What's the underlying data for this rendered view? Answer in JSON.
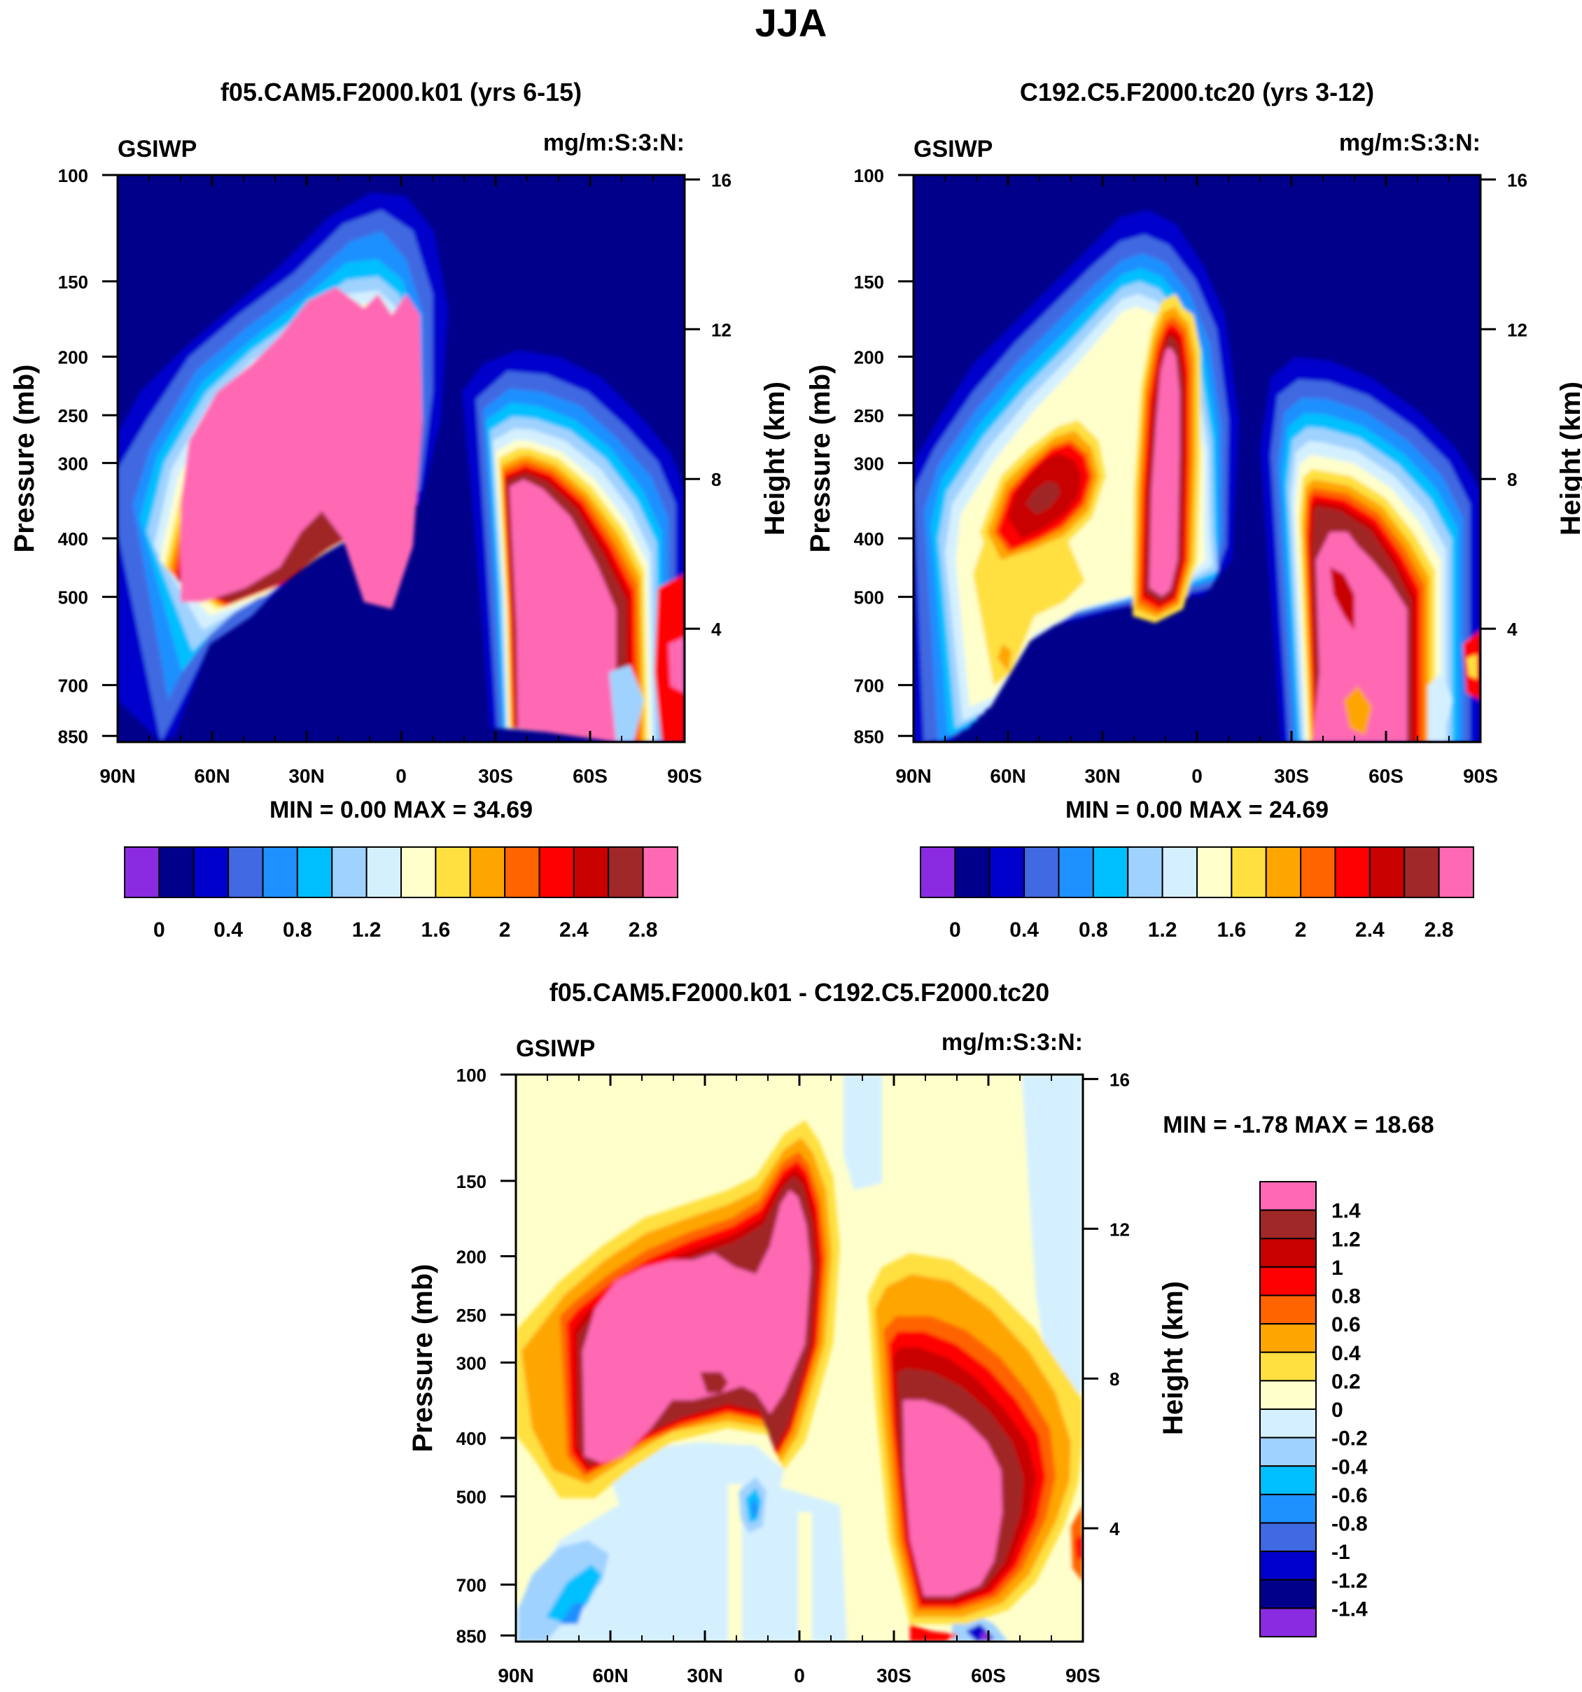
{
  "title": "JJA",
  "panels": [
    {
      "id": "top-left",
      "title": "f05.CAM5.F2000.k01 (yrs 6-15)",
      "variable": "GSIWP",
      "units": "mg/m:S:3:N:",
      "ylabel_left": "Pressure (mb)",
      "ylabel_right": "Height (km)",
      "stats": "MIN =   0.00  MAX =  34.69",
      "stats_min": 0.0,
      "stats_max": 34.69
    },
    {
      "id": "top-right",
      "title": "C192.C5.F2000.tc20 (yrs 3-12)",
      "variable": "GSIWP",
      "units": "mg/m:S:3:N:",
      "ylabel_left": "Pressure (mb)",
      "ylabel_right": "Height (km)",
      "stats": "MIN =   0.00  MAX =  24.69",
      "stats_min": 0.0,
      "stats_max": 24.69
    },
    {
      "id": "bottom",
      "title": "f05.CAM5.F2000.k01 - C192.C5.F2000.tc20",
      "variable": "GSIWP",
      "units": "mg/m:S:3:N:",
      "ylabel_left": "Pressure (mb)",
      "ylabel_right": "Height (km)",
      "stats": "MIN =  -1.78  MAX =  18.68",
      "stats_min": -1.78,
      "stats_max": 18.68
    }
  ],
  "axes": {
    "x_ticks": [
      "90N",
      "60N",
      "30N",
      "0",
      "30S",
      "60S",
      "90S"
    ],
    "x_range": [
      90,
      -90
    ],
    "pressure_ticks": [
      "100",
      "150",
      "200",
      "250",
      "300",
      "400",
      "500",
      "700",
      "850"
    ],
    "pressure_values": [
      100,
      150,
      200,
      250,
      300,
      400,
      500,
      700,
      850
    ],
    "height_ticks": [
      "16",
      "12",
      "8",
      "4"
    ],
    "height_values": [
      16,
      12,
      8,
      4
    ]
  },
  "colorbars": {
    "absolute": {
      "labels": [
        "0",
        "0.4",
        "0.8",
        "1.2",
        "1.6",
        "2",
        "2.4",
        "2.8"
      ],
      "colors": [
        "#8a2be2",
        "#00008b",
        "#0000cd",
        "#4169e1",
        "#1e90ff",
        "#00bfff",
        "#a0d2ff",
        "#d4f0ff",
        "#ffffcc",
        "#ffe040",
        "#ffa500",
        "#ff6400",
        "#ff0000",
        "#c80000",
        "#a02828",
        "#ff69b4"
      ]
    },
    "difference": {
      "labels": [
        "1.4",
        "1.2",
        "1",
        "0.8",
        "0.6",
        "0.4",
        "0.2",
        "0",
        "-0.2",
        "-0.4",
        "-0.6",
        "-0.8",
        "-1",
        "-1.2",
        "-1.4"
      ],
      "colors": [
        "#ff69b4",
        "#a02828",
        "#c80000",
        "#ff0000",
        "#ff6400",
        "#ffa500",
        "#ffe040",
        "#ffffcc",
        "#d4f0ff",
        "#a0d2ff",
        "#00bfff",
        "#1e90ff",
        "#4169e1",
        "#0000cd",
        "#00008b",
        "#8a2be2"
      ]
    }
  },
  "chart_data": [
    {
      "type": "contour",
      "title": "f05.CAM5.F2000.k01 (yrs 6-15)",
      "xlabel": "",
      "ylabel": "Pressure (mb)",
      "ylabel_right": "Height (km)",
      "xlim": [
        90,
        -90
      ],
      "ylim": [
        100,
        850
      ],
      "min": 0.0,
      "max": 34.69,
      "levels": [
        0,
        0.2,
        0.4,
        0.6,
        0.8,
        1.0,
        1.2,
        1.4,
        1.6,
        1.8,
        2.0,
        2.2,
        2.4,
        2.6,
        2.8
      ]
    },
    {
      "type": "contour",
      "title": "C192.C5.F2000.tc20 (yrs 3-12)",
      "xlabel": "",
      "ylabel": "Pressure (mb)",
      "ylabel_right": "Height (km)",
      "xlim": [
        90,
        -90
      ],
      "ylim": [
        100,
        850
      ],
      "min": 0.0,
      "max": 24.69,
      "levels": [
        0,
        0.2,
        0.4,
        0.6,
        0.8,
        1.0,
        1.2,
        1.4,
        1.6,
        1.8,
        2.0,
        2.2,
        2.4,
        2.6,
        2.8
      ]
    },
    {
      "type": "contour",
      "title": "f05.CAM5.F2000.k01 - C192.C5.F2000.tc20",
      "xlabel": "",
      "ylabel": "Pressure (mb)",
      "ylabel_right": "Height (km)",
      "xlim": [
        90,
        -90
      ],
      "ylim": [
        100,
        850
      ],
      "min": -1.78,
      "max": 18.68,
      "levels": [
        -1.4,
        -1.2,
        -1.0,
        -0.8,
        -0.6,
        -0.4,
        -0.2,
        0,
        0.2,
        0.4,
        0.6,
        0.8,
        1.0,
        1.2,
        1.4
      ]
    }
  ]
}
